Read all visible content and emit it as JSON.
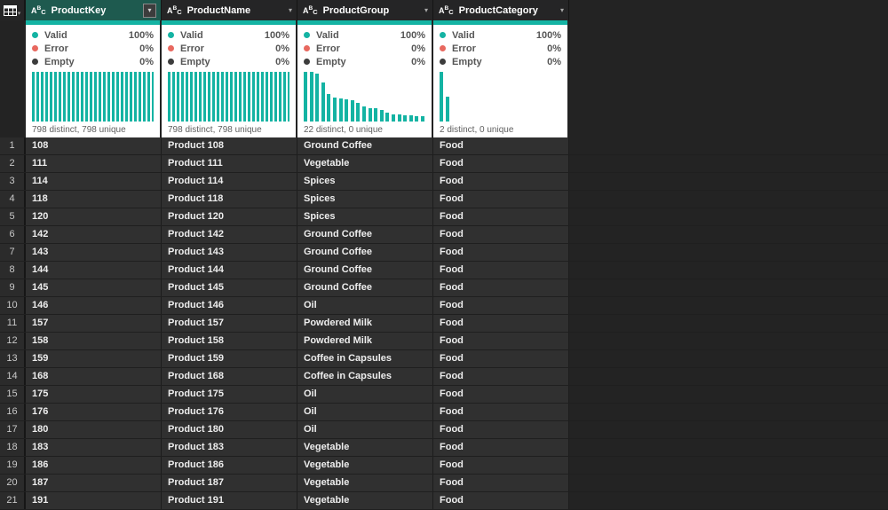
{
  "colors": {
    "accent_teal": "#14B3A3",
    "error_red": "#E8685F",
    "empty_dark": "#3C3C3C",
    "selected_header_bg": "#1E5A4F"
  },
  "corner": {
    "icon": "table-grid-icon",
    "dropdown_glyph": "▾"
  },
  "table": {
    "columns": [
      {
        "name": "ProductKey",
        "type": "text",
        "selected": true,
        "quality": {
          "valid_label": "Valid",
          "valid": "100%",
          "error_label": "Error",
          "error": "0%",
          "empty_label": "Empty",
          "empty": "0%"
        },
        "distinct_text": "798 distinct, 798 unique"
      },
      {
        "name": "ProductName",
        "type": "text",
        "selected": false,
        "quality": {
          "valid_label": "Valid",
          "valid": "100%",
          "error_label": "Error",
          "error": "0%",
          "empty_label": "Empty",
          "empty": "0%"
        },
        "distinct_text": "798 distinct, 798 unique"
      },
      {
        "name": "ProductGroup",
        "type": "text",
        "selected": false,
        "quality": {
          "valid_label": "Valid",
          "valid": "100%",
          "error_label": "Error",
          "error": "0%",
          "empty_label": "Empty",
          "empty": "0%"
        },
        "distinct_text": "22 distinct, 0 unique"
      },
      {
        "name": "ProductCategory",
        "type": "text",
        "selected": false,
        "quality": {
          "valid_label": "Valid",
          "valid": "100%",
          "error_label": "Error",
          "error": "0%",
          "empty_label": "Empty",
          "empty": "0%"
        },
        "distinct_text": "2 distinct, 0 unique"
      }
    ],
    "rows": [
      {
        "n": "1",
        "cells": [
          "108",
          "Product 108",
          "Ground Coffee",
          "Food"
        ]
      },
      {
        "n": "2",
        "cells": [
          "111",
          "Product 111",
          "Vegetable",
          "Food"
        ]
      },
      {
        "n": "3",
        "cells": [
          "114",
          "Product 114",
          "Spices",
          "Food"
        ]
      },
      {
        "n": "4",
        "cells": [
          "118",
          "Product 118",
          "Spices",
          "Food"
        ]
      },
      {
        "n": "5",
        "cells": [
          "120",
          "Product 120",
          "Spices",
          "Food"
        ]
      },
      {
        "n": "6",
        "cells": [
          "142",
          "Product 142",
          "Ground Coffee",
          "Food"
        ]
      },
      {
        "n": "7",
        "cells": [
          "143",
          "Product 143",
          "Ground Coffee",
          "Food"
        ]
      },
      {
        "n": "8",
        "cells": [
          "144",
          "Product 144",
          "Ground Coffee",
          "Food"
        ]
      },
      {
        "n": "9",
        "cells": [
          "145",
          "Product 145",
          "Ground Coffee",
          "Food"
        ]
      },
      {
        "n": "10",
        "cells": [
          "146",
          "Product 146",
          "Oil",
          "Food"
        ]
      },
      {
        "n": "11",
        "cells": [
          "157",
          "Product 157",
          "Powdered Milk",
          "Food"
        ]
      },
      {
        "n": "12",
        "cells": [
          "158",
          "Product 158",
          "Powdered Milk",
          "Food"
        ]
      },
      {
        "n": "13",
        "cells": [
          "159",
          "Product 159",
          "Coffee in Capsules",
          "Food"
        ]
      },
      {
        "n": "14",
        "cells": [
          "168",
          "Product 168",
          "Coffee in Capsules",
          "Food"
        ]
      },
      {
        "n": "15",
        "cells": [
          "175",
          "Product 175",
          "Oil",
          "Food"
        ]
      },
      {
        "n": "16",
        "cells": [
          "176",
          "Product 176",
          "Oil",
          "Food"
        ]
      },
      {
        "n": "17",
        "cells": [
          "180",
          "Product 180",
          "Oil",
          "Food"
        ]
      },
      {
        "n": "18",
        "cells": [
          "183",
          "Product 183",
          "Vegetable",
          "Food"
        ]
      },
      {
        "n": "19",
        "cells": [
          "186",
          "Product 186",
          "Vegetable",
          "Food"
        ]
      },
      {
        "n": "20",
        "cells": [
          "187",
          "Product 187",
          "Vegetable",
          "Food"
        ]
      },
      {
        "n": "21",
        "cells": [
          "191",
          "Product 191",
          "Vegetable",
          "Food"
        ]
      }
    ]
  },
  "chart_data": [
    {
      "type": "bar",
      "column": "ProductKey",
      "title": "ProductKey value distribution",
      "values": [
        1,
        1,
        1,
        1,
        1,
        1,
        1,
        1,
        1,
        1,
        1,
        1,
        1,
        1,
        1,
        1,
        1,
        1,
        1,
        1,
        1,
        1,
        1,
        1,
        1,
        1,
        1,
        1
      ],
      "ylim": [
        0,
        1
      ],
      "caption": "798 distinct, 798 unique"
    },
    {
      "type": "bar",
      "column": "ProductName",
      "title": "ProductName value distribution",
      "values": [
        1,
        1,
        1,
        1,
        1,
        1,
        1,
        1,
        1,
        1,
        1,
        1,
        1,
        1,
        1,
        1,
        1,
        1,
        1,
        1,
        1,
        1,
        1,
        1,
        1,
        1,
        1,
        1
      ],
      "ylim": [
        0,
        1
      ],
      "caption": "798 distinct, 798 unique"
    },
    {
      "type": "bar",
      "column": "ProductGroup",
      "title": "ProductGroup value distribution",
      "values": [
        1.0,
        1.0,
        0.97,
        0.78,
        0.55,
        0.48,
        0.46,
        0.44,
        0.42,
        0.38,
        0.3,
        0.27,
        0.26,
        0.24,
        0.17,
        0.15,
        0.14,
        0.13,
        0.12,
        0.11,
        0.1,
        0.08
      ],
      "ylim": [
        0,
        1
      ],
      "caption": "22 distinct, 0 unique"
    },
    {
      "type": "bar",
      "column": "ProductCategory",
      "title": "ProductCategory value distribution",
      "values": [
        1.0,
        0.5
      ],
      "ylim": [
        0,
        1
      ],
      "caption": "2 distinct, 0 unique"
    }
  ]
}
